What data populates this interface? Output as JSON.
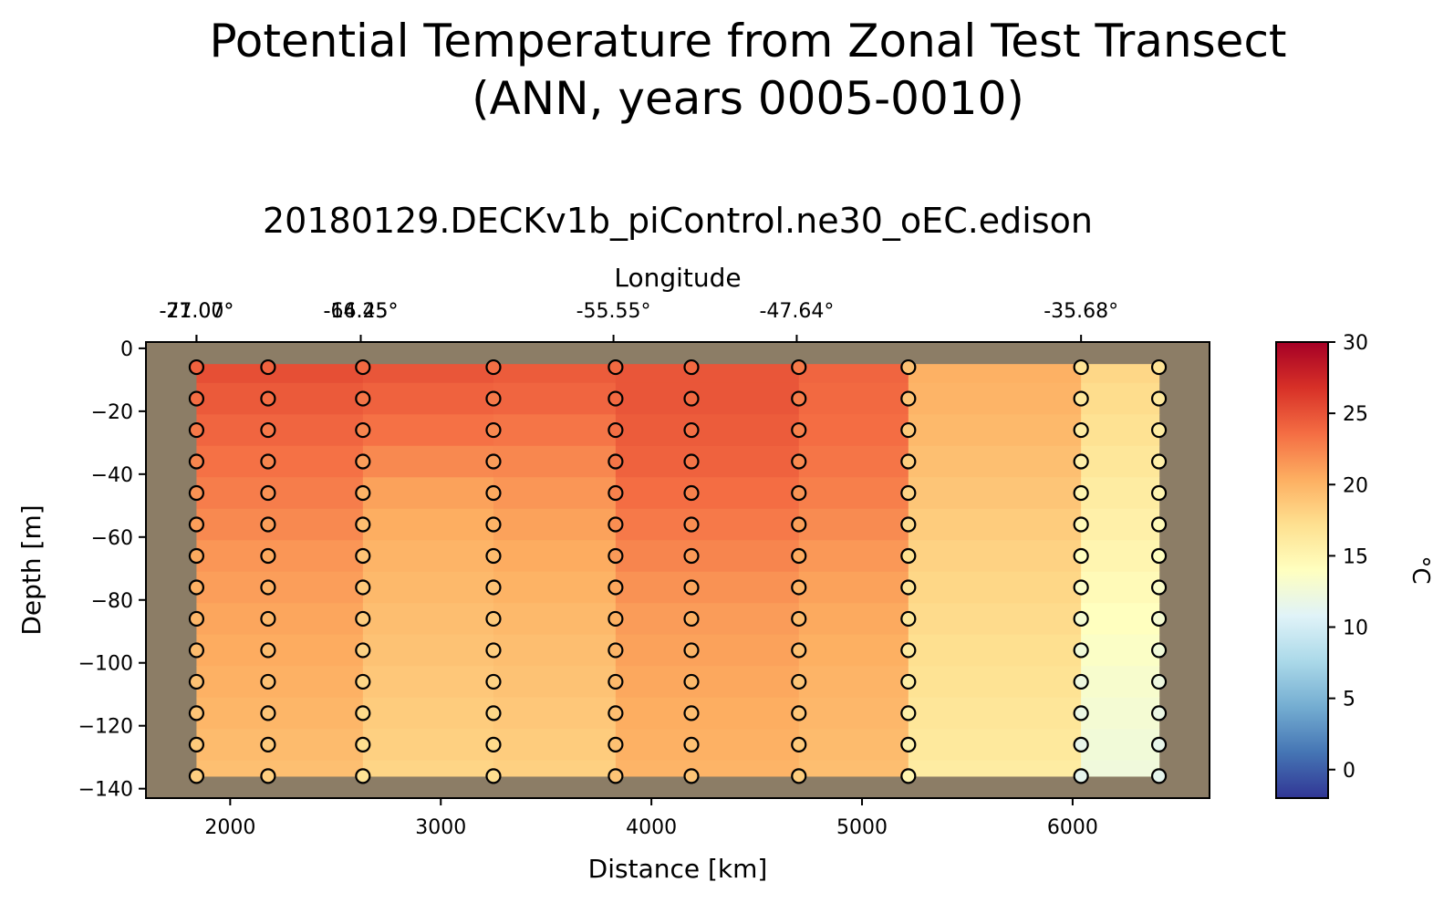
{
  "chart_data": {
    "type": "heatmap",
    "title": "Potential Temperature from Zonal Test Transect",
    "title_line2": "(ANN, years 0005-0010)",
    "subtitle": "20180129.DECKv1b_piControl.ne30_oEC.edison",
    "xlabel": "Distance [km]",
    "ylabel": "Depth [m]",
    "top_axis_label": "Longitude",
    "xlim": [
      1600,
      6650
    ],
    "ylim": [
      -143,
      2
    ],
    "xticks": [
      2000,
      3000,
      4000,
      5000,
      6000
    ],
    "yticks": [
      0,
      -20,
      -40,
      -60,
      -80,
      -100,
      -120,
      -140
    ],
    "ytick_labels": [
      "0",
      "−20",
      "−40",
      "−60",
      "−80",
      "−100",
      "−120",
      "−140"
    ],
    "top_ticks": [
      {
        "km": 1840,
        "label": "-71.00°"
      },
      {
        "km": 1840,
        "label": "-27.07°"
      },
      {
        "km": 2620,
        "label": "-64.45°"
      },
      {
        "km": 2620,
        "label": "-16.25°"
      },
      {
        "km": 3820,
        "label": "-55.55°"
      },
      {
        "km": 4690,
        "label": "-47.64°"
      },
      {
        "km": 6040,
        "label": "-35.68°"
      }
    ],
    "station_distances_km": [
      1840,
      2180,
      2630,
      3250,
      3830,
      4190,
      4700,
      5220,
      6040,
      6410
    ],
    "depths_m": [
      -6,
      -16,
      -26,
      -36,
      -46,
      -56,
      -66,
      -76,
      -86,
      -96,
      -106,
      -116,
      -126,
      -136
    ],
    "data_region": {
      "x": [
        1840,
        6410
      ],
      "depth": [
        -5,
        -136
      ]
    },
    "column_edges_km": [
      1840,
      2630,
      3250,
      3830,
      4700,
      5220,
      6040,
      6410
    ],
    "temperature_C": [
      [
        25.2,
        24.6,
        24.0,
        23.4,
        22.8,
        22.2,
        21.6,
        21.2,
        20.8,
        20.5,
        20.2,
        19.9,
        19.6,
        19.3
      ],
      [
        24.8,
        24.2,
        23.4,
        22.2,
        21.0,
        20.4,
        20.0,
        19.7,
        19.4,
        19.1,
        18.8,
        18.5,
        18.2,
        17.9
      ],
      [
        24.5,
        24.0,
        23.2,
        22.3,
        21.6,
        21.0,
        20.5,
        20.1,
        19.7,
        19.4,
        19.1,
        18.8,
        18.5,
        18.2
      ],
      [
        24.8,
        24.8,
        24.5,
        24.2,
        23.6,
        23.0,
        22.4,
        21.8,
        21.3,
        21.0,
        20.7,
        20.4,
        20.2,
        20.0
      ],
      [
        24.0,
        23.8,
        23.6,
        23.2,
        22.7,
        22.1,
        21.5,
        21.0,
        20.6,
        20.3,
        20.0,
        19.8,
        19.6,
        19.4
      ],
      [
        20.2,
        20.0,
        19.7,
        19.3,
        18.9,
        18.5,
        18.1,
        17.8,
        17.5,
        17.2,
        16.9,
        16.6,
        16.3,
        16.0
      ],
      [
        17.8,
        17.4,
        17.0,
        16.5,
        16.0,
        15.5,
        15.0,
        14.5,
        14.0,
        13.6,
        13.2,
        12.9,
        12.6,
        12.4
      ]
    ],
    "colorbar": {
      "label": "°C",
      "range": [
        -2,
        30
      ],
      "ticks": [
        0,
        5,
        10,
        15,
        20,
        25,
        30
      ],
      "colormap": "RdYlBu_r"
    },
    "colors": {
      "land": "#8c7d66",
      "marker_edge": "#000000"
    }
  }
}
